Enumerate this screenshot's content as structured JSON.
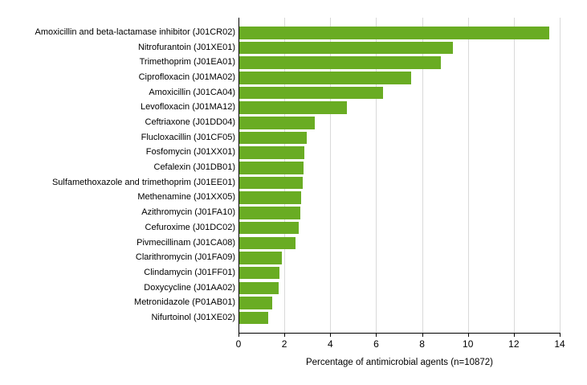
{
  "chart_data": {
    "type": "bar",
    "orientation": "horizontal",
    "title": "",
    "xlabel": "Percentage of antimicrobial agents (n=10872)",
    "ylabel": "",
    "xlim": [
      0,
      14
    ],
    "x_ticks": [
      0,
      2,
      4,
      6,
      8,
      10,
      12,
      14
    ],
    "grid": "vertical",
    "gridline_color": "#d9d9d9",
    "bar_color": "#69ac23",
    "axis_color": "#000000",
    "categories": [
      "Amoxicillin and beta-lactamase inhibitor (J01CR02)",
      "Nitrofurantoin (J01XE01)",
      "Trimethoprim (J01EA01)",
      "Ciprofloxacin (J01MA02)",
      "Amoxicillin (J01CA04)",
      "Levofloxacin (J01MA12)",
      "Ceftriaxone (J01DD04)",
      "Flucloxacillin (J01CF05)",
      "Fosfomycin (J01XX01)",
      "Cefalexin (J01DB01)",
      "Sulfamethoxazole and trimethoprim (J01EE01)",
      "Methenamine (J01XX05)",
      "Azithromycin (J01FA10)",
      "Cefuroxime (J01DC02)",
      "Pivmecillinam (J01CA08)",
      "Clarithromycin (J01FA09)",
      "Clindamycin (J01FF01)",
      "Doxycycline (J01AA02)",
      "Metronidazole (P01AB01)",
      "Nifurtoinol (J01XE02)"
    ],
    "values": [
      13.5,
      9.3,
      8.8,
      7.5,
      6.25,
      4.7,
      3.3,
      2.95,
      2.85,
      2.8,
      2.75,
      2.7,
      2.65,
      2.6,
      2.45,
      1.85,
      1.75,
      1.7,
      1.45,
      1.25
    ]
  }
}
